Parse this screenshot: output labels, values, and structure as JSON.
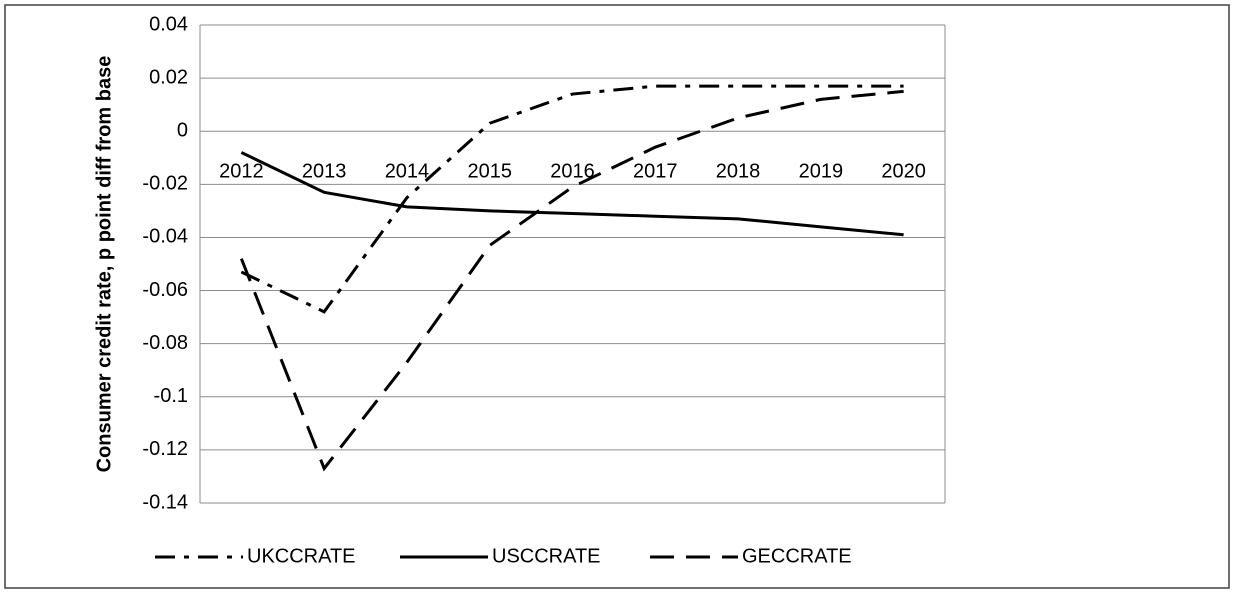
{
  "chart_data": {
    "type": "line",
    "y_label": "Consumer credit rate, p point diff from base",
    "categories": [
      "2012",
      "2013",
      "2014",
      "2015",
      "2016",
      "2017",
      "2018",
      "2019",
      "2020"
    ],
    "series": [
      {
        "name": "UKCCRATE",
        "color": "#000000",
        "dash": "dash-dot",
        "values": [
          -0.053,
          -0.068,
          -0.025,
          0.003,
          0.014,
          0.017,
          0.017,
          0.017,
          0.017
        ]
      },
      {
        "name": "USCCRATE",
        "color": "#000000",
        "dash": "solid",
        "values": [
          -0.008,
          -0.023,
          -0.0285,
          -0.03,
          -0.031,
          -0.032,
          -0.033,
          -0.036,
          -0.039
        ]
      },
      {
        "name": "GECCRATE",
        "color": "#000000",
        "dash": "dash",
        "values": [
          -0.048,
          -0.127,
          -0.087,
          -0.043,
          -0.021,
          -0.006,
          0.005,
          0.012,
          0.015
        ]
      }
    ],
    "ylim": [
      -0.14,
      0.04
    ],
    "yticks": [
      -0.14,
      -0.12,
      -0.1,
      -0.08,
      -0.06,
      -0.04,
      -0.02,
      0,
      0.02,
      0.04
    ],
    "grid": true,
    "legend": "bottom"
  }
}
